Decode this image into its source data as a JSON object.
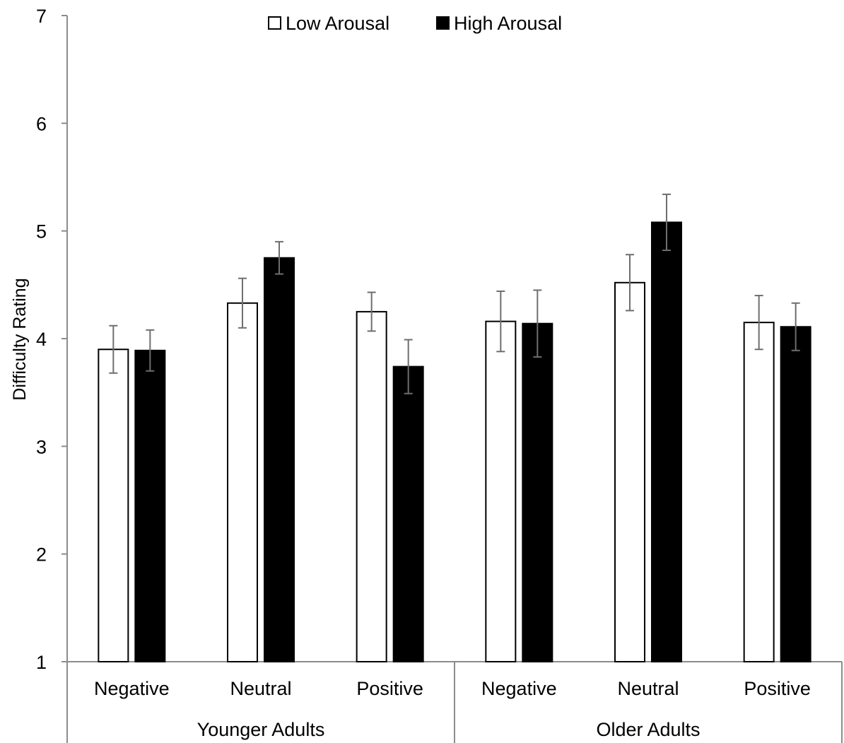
{
  "chart_data": {
    "type": "bar",
    "ylabel": "Difficulty Rating",
    "xlabel": "",
    "ylim": [
      1,
      7
    ],
    "yticks": [
      "1",
      "2",
      "3",
      "4",
      "5",
      "6",
      "7"
    ],
    "grid": false,
    "legend_position": "top-center",
    "groups": [
      {
        "label": "Younger Adults",
        "categories": [
          "Negative",
          "Neutral",
          "Positive"
        ]
      },
      {
        "label": "Older Adults",
        "categories": [
          "Negative",
          "Neutral",
          "Positive"
        ]
      }
    ],
    "categories": [
      "Negative",
      "Neutral",
      "Positive",
      "Negative",
      "Neutral",
      "Positive"
    ],
    "series": [
      {
        "name": "Low Arousal",
        "fill": "#ffffff",
        "values": [
          3.9,
          4.33,
          4.25,
          4.16,
          4.52,
          4.15
        ],
        "errors": [
          0.22,
          0.23,
          0.18,
          0.28,
          0.26,
          0.25
        ]
      },
      {
        "name": "High Arousal",
        "fill": "#000000",
        "values": [
          3.89,
          4.75,
          3.74,
          4.14,
          5.08,
          4.11
        ],
        "errors": [
          0.19,
          0.15,
          0.25,
          0.31,
          0.26,
          0.22
        ]
      }
    ]
  }
}
